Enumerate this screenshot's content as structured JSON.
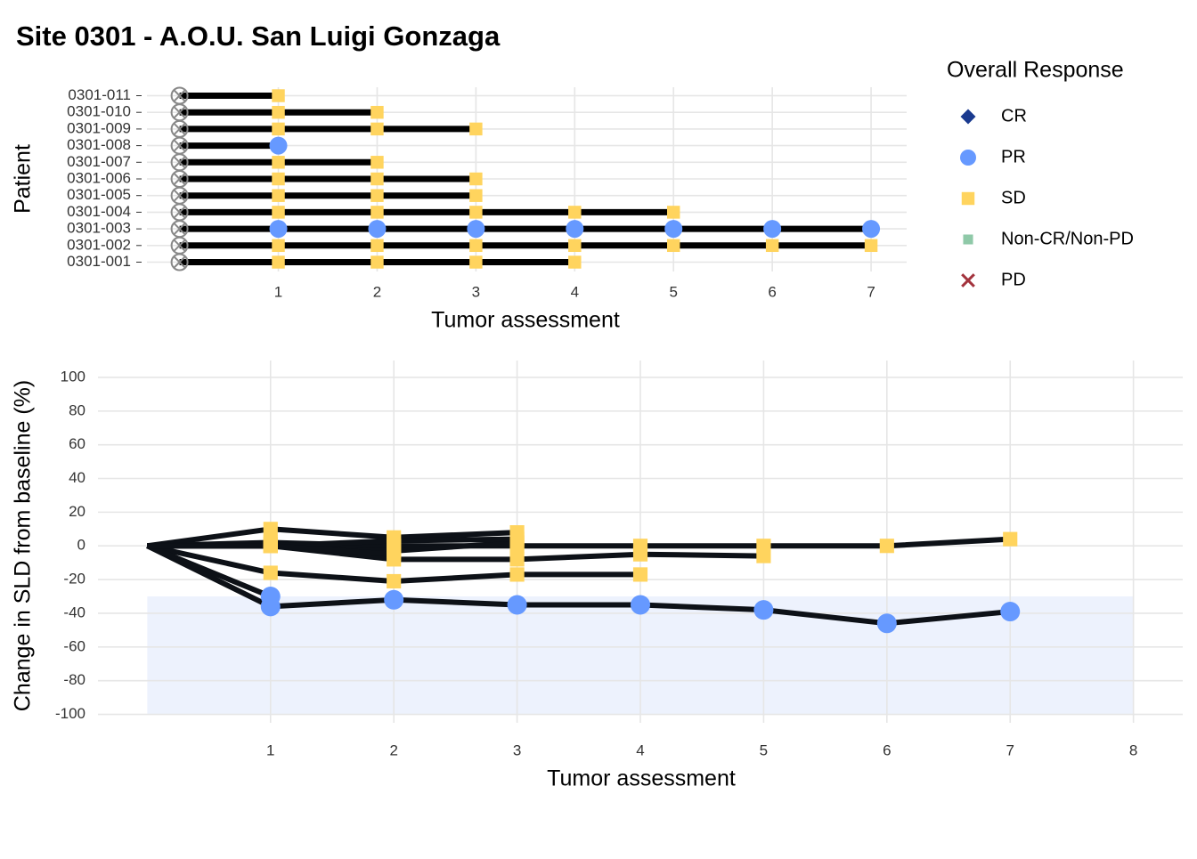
{
  "title": "Site 0301 - A.O.U. San Luigi Gonzaga",
  "chart_data": [
    {
      "type": "swimmer",
      "ylabel": "Patient",
      "xlabel": "Tumor assessment",
      "categories": [
        "0301-001",
        "0301-002",
        "0301-003",
        "0301-004",
        "0301-005",
        "0301-006",
        "0301-007",
        "0301-008",
        "0301-009",
        "0301-010",
        "0301-011"
      ],
      "series": [
        {
          "x": [
            1,
            2,
            3,
            4
          ],
          "responses": [
            "SD",
            "SD",
            "SD",
            "SD"
          ]
        },
        {
          "x": [
            1,
            2,
            3,
            4,
            5,
            6,
            7
          ],
          "responses": [
            "SD",
            "SD",
            "SD",
            "SD",
            "SD",
            "SD",
            "SD"
          ]
        },
        {
          "x": [
            1,
            2,
            3,
            4,
            5,
            6,
            7
          ],
          "responses": [
            "PR",
            "PR",
            "PR",
            "PR",
            "PR",
            "PR",
            "PR"
          ]
        },
        {
          "x": [
            1,
            2,
            3,
            4,
            5
          ],
          "responses": [
            "SD",
            "SD",
            "SD",
            "SD",
            "SD"
          ]
        },
        {
          "x": [
            1,
            2,
            3
          ],
          "responses": [
            "SD",
            "SD",
            "SD"
          ]
        },
        {
          "x": [
            1,
            2,
            3
          ],
          "responses": [
            "SD",
            "SD",
            "SD"
          ]
        },
        {
          "x": [
            1,
            2
          ],
          "responses": [
            "SD",
            "SD"
          ]
        },
        {
          "x": [
            1
          ],
          "responses": [
            "PR"
          ]
        },
        {
          "x": [
            1,
            2,
            3
          ],
          "responses": [
            "SD",
            "SD",
            "SD"
          ]
        },
        {
          "x": [
            1,
            2
          ],
          "responses": [
            "SD",
            "SD"
          ]
        },
        {
          "x": [
            1
          ],
          "responses": [
            "SD"
          ]
        }
      ],
      "xlim": [
        -0.33,
        7.36
      ],
      "xticks": [
        1,
        2,
        3,
        4,
        5,
        6,
        7
      ],
      "grid": true,
      "legend": {
        "title": "Overall Response",
        "position": "right",
        "items": [
          {
            "label": "CR",
            "color": "#1a3a8f",
            "shape": "diamond"
          },
          {
            "label": "PR",
            "color": "#6699ff",
            "shape": "circle"
          },
          {
            "label": "SD",
            "color": "#ffd45e",
            "shape": "square"
          },
          {
            "label": "Non-CR/Non-PD",
            "color": "#8fc9a8",
            "shape": "square"
          },
          {
            "label": "PD",
            "color": "#a3333d",
            "shape": "cross"
          }
        ]
      }
    },
    {
      "type": "line",
      "ylabel": "Change in SLD from baseline (%)",
      "xlabel": "Tumor assessment",
      "x": [
        0,
        1,
        2,
        3,
        4,
        5,
        6,
        7
      ],
      "series": [
        {
          "name": "0301-001",
          "values": [
            0,
            -16,
            -21,
            -17,
            -17,
            null,
            null,
            null
          ]
        },
        {
          "name": "0301-002",
          "values": [
            0,
            1,
            0,
            0,
            0,
            0,
            0,
            4
          ]
        },
        {
          "name": "0301-003",
          "values": [
            0,
            -36,
            -32,
            -35,
            -35,
            -38,
            -46,
            -39
          ]
        },
        {
          "name": "0301-004",
          "values": [
            0,
            0,
            -8,
            -8,
            -5,
            -6,
            null,
            null
          ]
        },
        {
          "name": "0301-005",
          "values": [
            0,
            10,
            5,
            8,
            null,
            null,
            null,
            null
          ]
        },
        {
          "name": "0301-006",
          "values": [
            0,
            1,
            -3,
            2,
            null,
            null,
            null,
            null
          ]
        },
        {
          "name": "0301-007",
          "values": [
            0,
            2,
            0,
            null,
            null,
            null,
            null,
            null
          ]
        },
        {
          "name": "0301-008",
          "values": [
            0,
            -30,
            null,
            null,
            null,
            null,
            null,
            null
          ]
        },
        {
          "name": "0301-009",
          "values": [
            0,
            0,
            3,
            4,
            null,
            null,
            null,
            null
          ]
        },
        {
          "name": "0301-010",
          "values": [
            0,
            0,
            -5,
            null,
            null,
            null,
            null,
            null
          ]
        },
        {
          "name": "0301-011",
          "values": [
            0,
            0,
            null,
            null,
            null,
            null,
            null,
            null
          ]
        }
      ],
      "line_color": "#0d1117",
      "xlim": [
        -0.4,
        8.4
      ],
      "xticks": [
        1,
        2,
        3,
        4,
        5,
        6,
        7,
        8
      ],
      "ylim": [
        -105,
        110
      ],
      "yticks": [
        -100,
        -80,
        -60,
        -40,
        -20,
        0,
        20,
        40,
        60,
        80,
        100
      ],
      "band": {
        "y": [
          -100,
          -30
        ],
        "x": [
          0,
          8
        ],
        "color": "#edf2fd"
      },
      "grid": true
    }
  ]
}
